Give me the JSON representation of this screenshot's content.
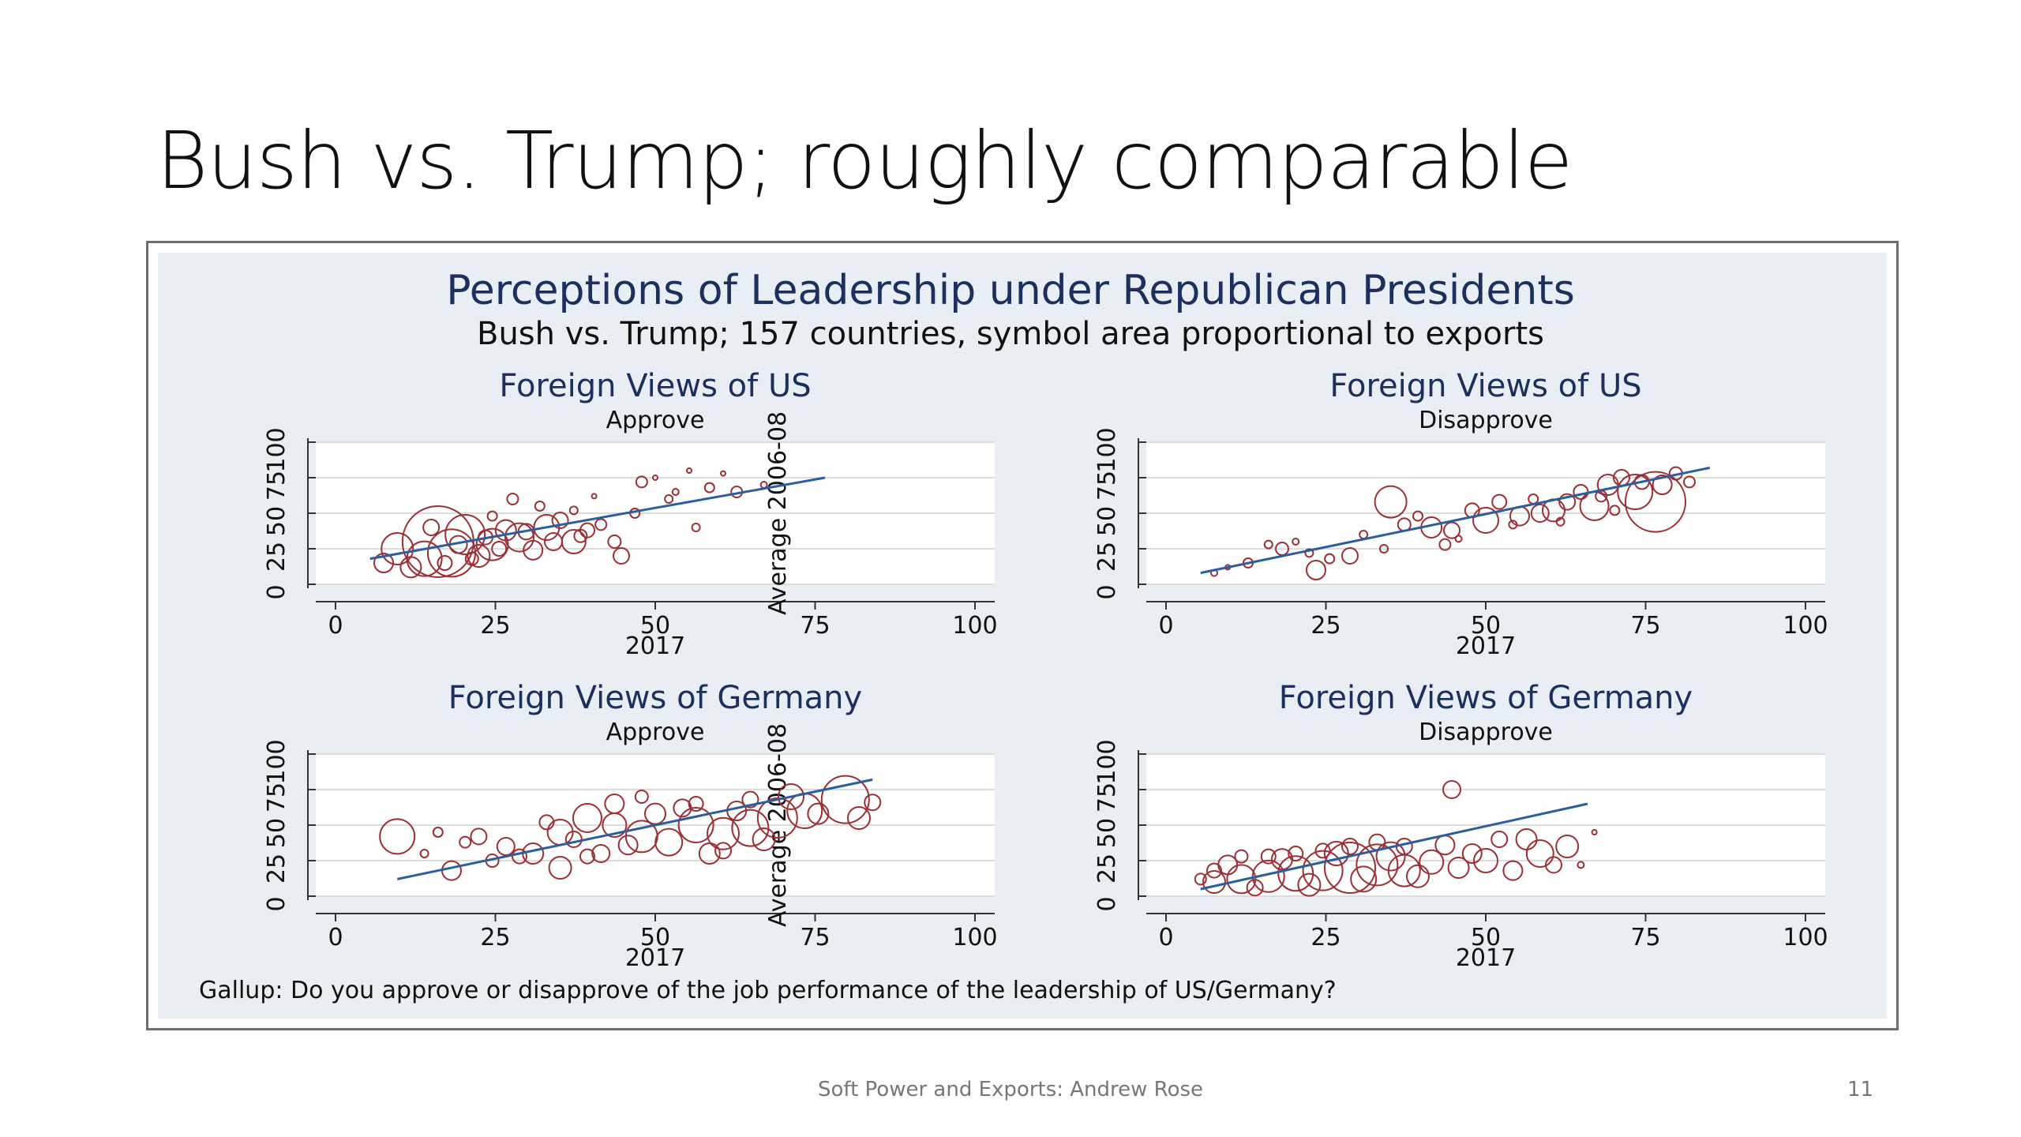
{
  "slide": {
    "title": "Bush vs. Trump; roughly comparable",
    "footer": "Soft Power and Exports: Andrew Rose",
    "page_number": "11"
  },
  "figure": {
    "title": "Perceptions of Leadership under Republican Presidents",
    "subtitle": "Bush vs. Trump; 157 countries, symbol area proportional to exports",
    "note": "Gallup: Do you approve or disapprove of the job performance of the leadership of US/Germany?"
  },
  "colors": {
    "marker": "#9b2f35",
    "fit_line": "#2b5e9e",
    "title_text": "#1c2f5e",
    "panel_bg": "#e8eef3",
    "grid": "#dcdcdc"
  },
  "chart_data": [
    {
      "type": "scatter",
      "title": "Foreign Views of US",
      "subtitle": "Approve",
      "xlabel": "2017",
      "ylabel": "Average 2006-08",
      "xlim": [
        0,
        100
      ],
      "ylim": [
        0,
        100
      ],
      "xticks": [
        "0",
        "25",
        "50",
        "75",
        "100"
      ],
      "yticks": [
        "0",
        "25",
        "50",
        "75",
        "100"
      ],
      "grid": true,
      "fit_line": [
        [
          8,
          18
        ],
        [
          75,
          75
        ]
      ],
      "points": [
        [
          18,
          30,
          4.5
        ],
        [
          12,
          25,
          2.0
        ],
        [
          20,
          22,
          3.0
        ],
        [
          16,
          18,
          2.2
        ],
        [
          22,
          35,
          2.5
        ],
        [
          26,
          28,
          2.0
        ],
        [
          30,
          33,
          1.8
        ],
        [
          34,
          40,
          1.6
        ],
        [
          38,
          30,
          1.5
        ],
        [
          10,
          15,
          1.2
        ],
        [
          14,
          12,
          1.3
        ],
        [
          24,
          20,
          1.4
        ],
        [
          28,
          38,
          1.3
        ],
        [
          32,
          24,
          1.2
        ],
        [
          36,
          45,
          1.0
        ],
        [
          40,
          38,
          0.9
        ],
        [
          44,
          30,
          0.8
        ],
        [
          42,
          42,
          0.7
        ],
        [
          47,
          50,
          0.6
        ],
        [
          52,
          60,
          0.5
        ],
        [
          58,
          68,
          0.6
        ],
        [
          62,
          65,
          0.7
        ],
        [
          48,
          72,
          0.7
        ],
        [
          55,
          80,
          0.3
        ],
        [
          60,
          78,
          0.3
        ],
        [
          66,
          70,
          0.4
        ],
        [
          45,
          20,
          1.0
        ],
        [
          56,
          40,
          0.5
        ],
        [
          29,
          60,
          0.7
        ],
        [
          33,
          55,
          0.6
        ],
        [
          26,
          48,
          0.6
        ],
        [
          38,
          52,
          0.5
        ],
        [
          41,
          62,
          0.3
        ],
        [
          50,
          75,
          0.3
        ],
        [
          53,
          65,
          0.4
        ],
        [
          17,
          40,
          1.0
        ],
        [
          21,
          28,
          1.1
        ],
        [
          25,
          33,
          0.9
        ],
        [
          31,
          37,
          1.0
        ],
        [
          35,
          30,
          1.1
        ],
        [
          39,
          34,
          0.8
        ],
        [
          19,
          15,
          0.9
        ],
        [
          23,
          18,
          0.8
        ],
        [
          27,
          25,
          0.9
        ]
      ]
    },
    {
      "type": "scatter",
      "title": "Foreign Views of US",
      "subtitle": "Disapprove",
      "xlabel": "2017",
      "ylabel": "",
      "xlim": [
        0,
        100
      ],
      "ylim": [
        0,
        100
      ],
      "xticks": [
        "0",
        "25",
        "50",
        "75",
        "100"
      ],
      "yticks": [
        "0",
        "25",
        "50",
        "75",
        "100"
      ],
      "grid": true,
      "fit_line": [
        [
          8,
          8
        ],
        [
          83,
          82
        ]
      ],
      "points": [
        [
          75,
          58,
          3.8
        ],
        [
          72,
          65,
          2.2
        ],
        [
          66,
          55,
          1.8
        ],
        [
          36,
          58,
          2.0
        ],
        [
          42,
          40,
          1.3
        ],
        [
          50,
          45,
          1.6
        ],
        [
          55,
          48,
          1.2
        ],
        [
          60,
          52,
          1.4
        ],
        [
          68,
          70,
          1.3
        ],
        [
          25,
          10,
          1.2
        ],
        [
          30,
          20,
          1.0
        ],
        [
          20,
          25,
          0.8
        ],
        [
          15,
          15,
          0.6
        ],
        [
          10,
          8,
          0.4
        ],
        [
          12,
          12,
          0.3
        ],
        [
          18,
          28,
          0.5
        ],
        [
          22,
          30,
          0.4
        ],
        [
          27,
          18,
          0.6
        ],
        [
          32,
          35,
          0.5
        ],
        [
          38,
          42,
          0.8
        ],
        [
          45,
          38,
          1.0
        ],
        [
          48,
          52,
          0.9
        ],
        [
          52,
          58,
          0.9
        ],
        [
          58,
          50,
          1.1
        ],
        [
          62,
          58,
          1.0
        ],
        [
          64,
          65,
          0.9
        ],
        [
          70,
          75,
          1.0
        ],
        [
          73,
          72,
          0.9
        ],
        [
          76,
          70,
          1.2
        ],
        [
          78,
          78,
          0.8
        ],
        [
          80,
          72,
          0.7
        ],
        [
          44,
          28,
          0.7
        ],
        [
          40,
          48,
          0.6
        ],
        [
          54,
          42,
          0.5
        ],
        [
          57,
          60,
          0.6
        ],
        [
          61,
          44,
          0.5
        ],
        [
          67,
          62,
          0.7
        ],
        [
          69,
          52,
          0.6
        ],
        [
          46,
          32,
          0.4
        ],
        [
          35,
          25,
          0.5
        ],
        [
          24,
          22,
          0.5
        ]
      ]
    },
    {
      "type": "scatter",
      "title": "Foreign Views of Germany",
      "subtitle": "Approve",
      "xlabel": "2017",
      "ylabel": "Average 2006-08",
      "xlim": [
        0,
        100
      ],
      "ylim": [
        0,
        100
      ],
      "xticks": [
        "0",
        "25",
        "50",
        "75",
        "100"
      ],
      "yticks": [
        "0",
        "25",
        "50",
        "75",
        "100"
      ],
      "grid": true,
      "fit_line": [
        [
          12,
          12
        ],
        [
          82,
          82
        ]
      ],
      "points": [
        [
          12,
          42,
          2.2
        ],
        [
          20,
          18,
          1.2
        ],
        [
          24,
          42,
          1.0
        ],
        [
          28,
          35,
          1.1
        ],
        [
          32,
          30,
          1.3
        ],
        [
          36,
          45,
          1.6
        ],
        [
          40,
          55,
          1.8
        ],
        [
          44,
          50,
          1.5
        ],
        [
          48,
          42,
          2.0
        ],
        [
          52,
          38,
          1.7
        ],
        [
          56,
          50,
          2.2
        ],
        [
          60,
          44,
          2.0
        ],
        [
          64,
          48,
          2.3
        ],
        [
          68,
          55,
          2.5
        ],
        [
          72,
          60,
          2.2
        ],
        [
          78,
          68,
          3.0
        ],
        [
          70,
          70,
          1.6
        ],
        [
          66,
          40,
          1.4
        ],
        [
          62,
          60,
          1.2
        ],
        [
          58,
          30,
          1.3
        ],
        [
          54,
          62,
          1.1
        ],
        [
          50,
          58,
          1.3
        ],
        [
          46,
          36,
          1.2
        ],
        [
          42,
          30,
          1.1
        ],
        [
          38,
          40,
          1.0
        ],
        [
          34,
          52,
          0.9
        ],
        [
          30,
          28,
          0.9
        ],
        [
          26,
          25,
          0.8
        ],
        [
          22,
          38,
          0.7
        ],
        [
          18,
          45,
          0.6
        ],
        [
          16,
          30,
          0.5
        ],
        [
          36,
          20,
          1.4
        ],
        [
          44,
          65,
          1.2
        ],
        [
          48,
          70,
          0.8
        ],
        [
          56,
          65,
          0.9
        ],
        [
          64,
          68,
          1.0
        ],
        [
          74,
          58,
          1.3
        ],
        [
          80,
          55,
          1.4
        ],
        [
          82,
          66,
          1.0
        ],
        [
          40,
          28,
          0.9
        ],
        [
          60,
          32,
          1.0
        ]
      ]
    },
    {
      "type": "scatter",
      "title": "Foreign Views of Germany",
      "subtitle": "Disapprove",
      "xlabel": "2017",
      "ylabel": "",
      "xlim": [
        0,
        100
      ],
      "ylim": [
        0,
        100
      ],
      "xticks": [
        "0",
        "25",
        "50",
        "75",
        "100"
      ],
      "yticks": [
        "0",
        "25",
        "50",
        "75",
        "100"
      ],
      "grid": true,
      "fit_line": [
        [
          8,
          5
        ],
        [
          65,
          65
        ]
      ],
      "points": [
        [
          10,
          10,
          1.4
        ],
        [
          14,
          12,
          1.8
        ],
        [
          18,
          14,
          2.0
        ],
        [
          22,
          16,
          2.2
        ],
        [
          26,
          18,
          2.5
        ],
        [
          30,
          20,
          3.2
        ],
        [
          34,
          22,
          2.6
        ],
        [
          38,
          18,
          2.0
        ],
        [
          12,
          22,
          1.2
        ],
        [
          16,
          6,
          1.0
        ],
        [
          20,
          26,
          1.3
        ],
        [
          24,
          8,
          1.4
        ],
        [
          28,
          30,
          1.5
        ],
        [
          32,
          12,
          1.6
        ],
        [
          36,
          28,
          1.8
        ],
        [
          40,
          14,
          1.4
        ],
        [
          42,
          24,
          1.5
        ],
        [
          46,
          20,
          1.3
        ],
        [
          50,
          25,
          1.5
        ],
        [
          54,
          18,
          1.2
        ],
        [
          58,
          30,
          1.7
        ],
        [
          62,
          35,
          1.4
        ],
        [
          60,
          22,
          1.0
        ],
        [
          45,
          75,
          1.1
        ],
        [
          64,
          22,
          0.4
        ],
        [
          66,
          45,
          0.3
        ],
        [
          56,
          40,
          1.3
        ],
        [
          52,
          40,
          1.0
        ],
        [
          48,
          30,
          1.2
        ],
        [
          44,
          36,
          1.2
        ],
        [
          38,
          35,
          1.0
        ],
        [
          34,
          38,
          1.0
        ],
        [
          30,
          35,
          1.0
        ],
        [
          26,
          32,
          0.9
        ],
        [
          22,
          30,
          0.9
        ],
        [
          18,
          28,
          0.9
        ],
        [
          14,
          28,
          0.8
        ],
        [
          10,
          18,
          0.9
        ],
        [
          8,
          12,
          0.7
        ]
      ]
    }
  ]
}
